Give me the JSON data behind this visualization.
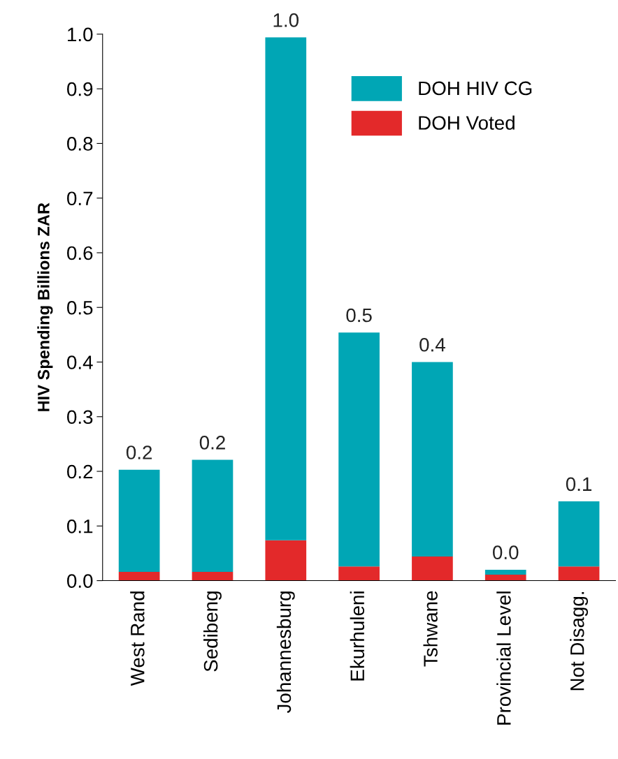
{
  "chart_data": {
    "type": "bar",
    "ylabel": "HIV Spending Billions ZAR",
    "categories": [
      "West Rand",
      "Sedibeng",
      "Johannesburg",
      "Ekurhuleni",
      "Tshwane",
      "Provincial Level",
      "Not Disagg."
    ],
    "stacked": true,
    "series": [
      {
        "name": "DOH Voted",
        "color": "#e3292a",
        "values": [
          0.016,
          0.016,
          0.074,
          0.026,
          0.044,
          0.011,
          0.026
        ]
      },
      {
        "name": "DOH HIV CG",
        "color": "#00a6b5",
        "values": [
          0.187,
          0.205,
          0.92,
          0.428,
          0.356,
          0.009,
          0.119
        ]
      }
    ],
    "totals": [
      "0.2",
      "0.2",
      "1.0",
      "0.5",
      "0.4",
      "0.0",
      "0.1"
    ],
    "ylim": [
      0,
      1.0
    ],
    "yticks": [
      {
        "value": 0,
        "label": "0.0"
      },
      {
        "value": 0.1,
        "label": "0.1"
      },
      {
        "value": 0.2,
        "label": "0.2"
      },
      {
        "value": 0.3,
        "label": "0.3"
      },
      {
        "value": 0.4,
        "label": "0.4"
      },
      {
        "value": 0.5,
        "label": "0.5"
      },
      {
        "value": 0.6,
        "label": "0.6"
      },
      {
        "value": 0.7,
        "label": "0.7"
      },
      {
        "value": 0.8,
        "label": "0.8"
      },
      {
        "value": 0.9,
        "label": "0.9"
      },
      {
        "value": 1.0,
        "label": "1.0"
      }
    ],
    "legend": "top right",
    "grid": false
  }
}
